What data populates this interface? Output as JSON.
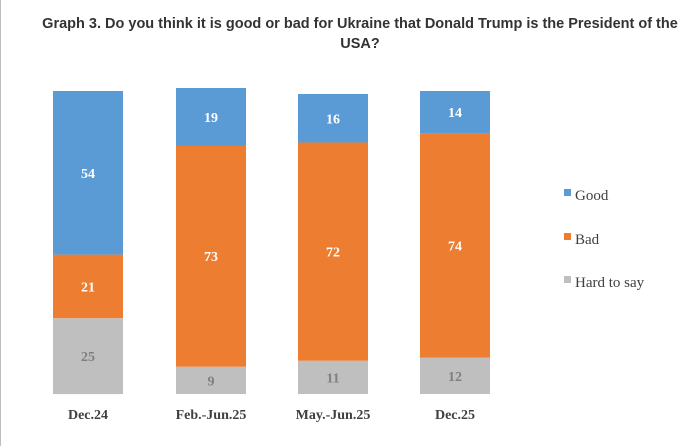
{
  "chart_data": {
    "type": "bar",
    "stacked": true,
    "percent_stacked": true,
    "title": "Graph 3. Do you think it is good or bad for Ukraine that Donald Trump is the President of the USA?",
    "xlabel": "",
    "ylabel": "",
    "ylim": [
      0,
      100
    ],
    "grid": false,
    "legend_position": "right",
    "categories": [
      "Dec.24",
      "Feb.-Jun.25",
      "May.-Jun.25",
      "Dec.25"
    ],
    "series": [
      {
        "name": "Good",
        "color": "#5b9bd5",
        "label_color": "#ffffff",
        "values": [
          54,
          19,
          16,
          14
        ]
      },
      {
        "name": "Bad",
        "color": "#ed7d31",
        "label_color": "#ffffff",
        "values": [
          21,
          73,
          72,
          74
        ]
      },
      {
        "name": "Hard to say",
        "color": "#bfbfbf",
        "label_color": "#7f7f7f",
        "values": [
          25,
          9,
          11,
          12
        ]
      }
    ]
  }
}
